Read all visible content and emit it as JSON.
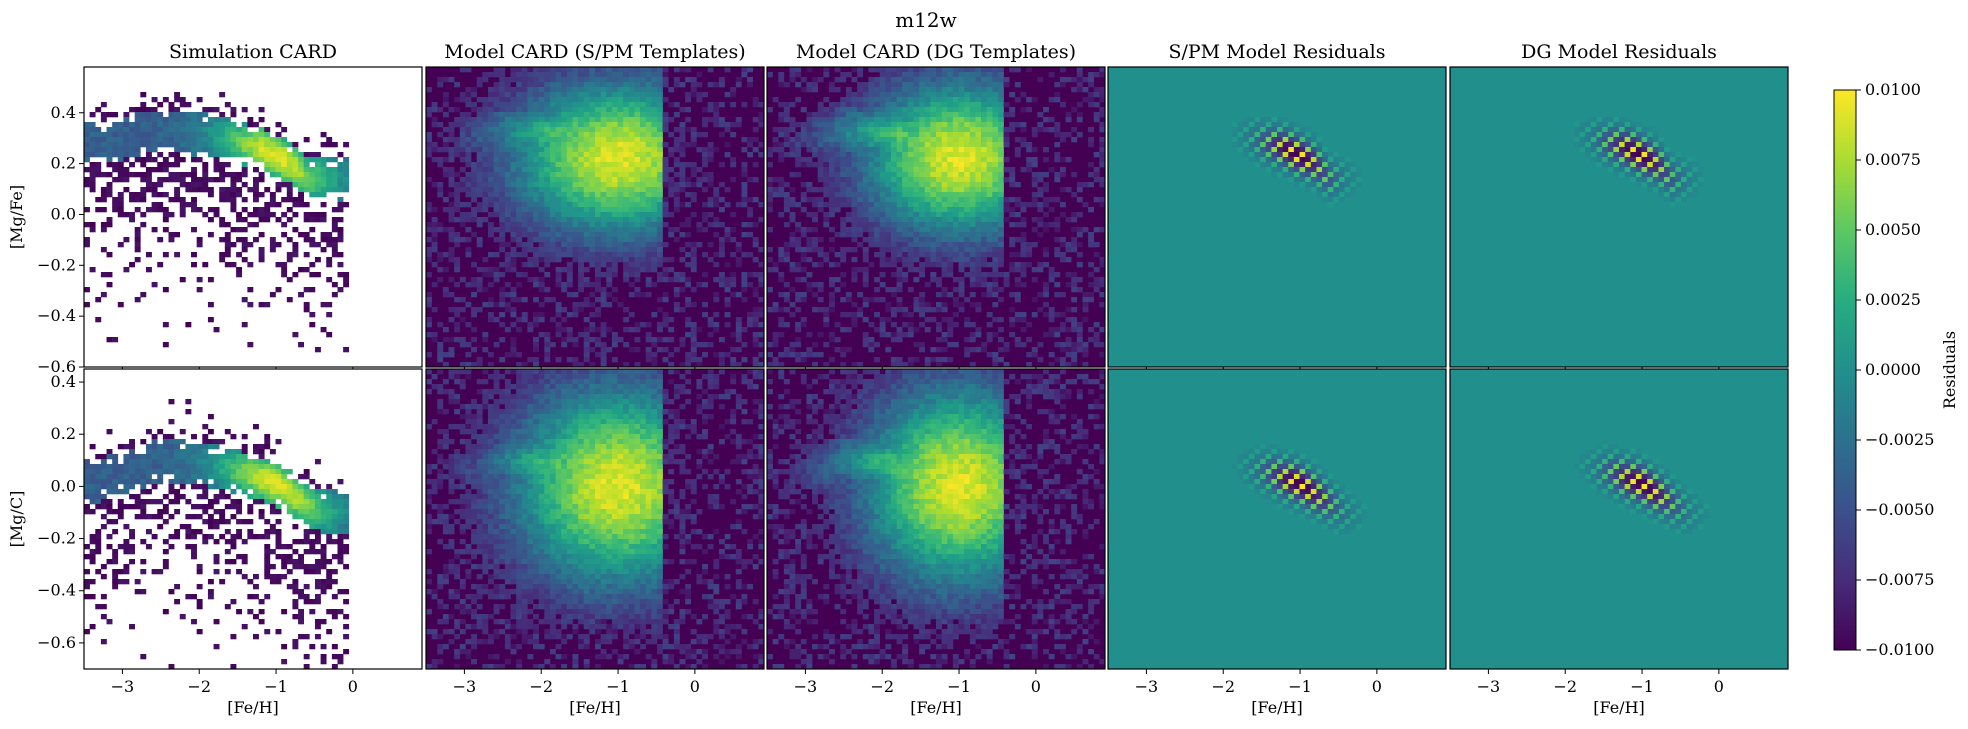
{
  "chart_data": {
    "type": "heatmap",
    "title": "m12w",
    "panel_titles": [
      "Simulation CARD",
      "Model CARD (S/PM Templates)",
      "Model CARD (DG Templates)",
      "S/PM Model Residuals",
      "DG Model Residuals"
    ],
    "xlabel": "[Fe/H]",
    "xlim": [
      -3.5,
      0.9
    ],
    "xticks": [
      -3,
      -2,
      -1,
      0
    ],
    "rows": [
      {
        "ylabel": "[Mg/Fe]",
        "ylim": [
          -0.6,
          0.58
        ],
        "yticks": [
          0.4,
          0.2,
          0.0,
          -0.2,
          -0.4,
          -0.6
        ],
        "ridge": [
          [
            -3.3,
            0.28
          ],
          [
            -2.5,
            0.33
          ],
          [
            -1.8,
            0.31
          ],
          [
            -1.2,
            0.26
          ],
          [
            -0.8,
            0.2
          ],
          [
            -0.6,
            0.14
          ]
        ],
        "model_peak": [
          -1.0,
          0.22
        ]
      },
      {
        "ylabel": "[Mg/C]",
        "ylim": [
          -0.7,
          0.45
        ],
        "yticks": [
          0.4,
          0.2,
          0.0,
          -0.2,
          -0.4,
          -0.6
        ],
        "ridge": [
          [
            -3.3,
            0.02
          ],
          [
            -2.5,
            0.1
          ],
          [
            -2.0,
            0.09
          ],
          [
            -1.4,
            0.05
          ],
          [
            -1.0,
            0.01
          ],
          [
            -0.4,
            -0.1
          ]
        ],
        "model_peak": [
          -1.0,
          0.0
        ]
      }
    ],
    "colorbar": {
      "label": "Residuals",
      "vmin": -0.01,
      "vmax": 0.01,
      "ticks": [
        "0.0100",
        "0.0075",
        "0.0050",
        "0.0025",
        "0.0000",
        "−0.0025",
        "−0.0050",
        "−0.0075",
        "−0.0100"
      ]
    },
    "colormap": "viridis",
    "colors": {
      "low": "#440154",
      "mid": "#21908d",
      "high": "#fde725"
    }
  }
}
